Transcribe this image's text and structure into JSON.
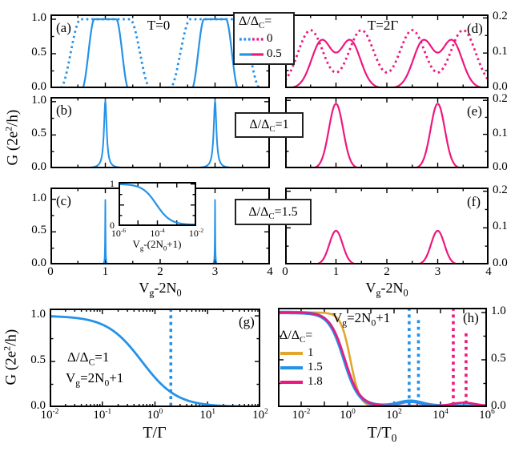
{
  "colors": {
    "blue": "#2492e8",
    "magenta": "#ed187f",
    "orange": "#e2a52e",
    "axis": "#000000",
    "background": "#ffffff"
  },
  "labels": {
    "g_axis": {
      "pre": "G (2e",
      "sup": "2",
      "post": "/h)"
    },
    "vg_axis": {
      "pre": "V",
      "sub": "g",
      "post": "-2N",
      "sub2": "0"
    },
    "inset_axis": {
      "pre": "V",
      "sub": "g",
      "post": "-(2N",
      "sub2": "0",
      "post2": "+1)"
    },
    "t_gamma": "T/Γ",
    "t_t0": {
      "pre": "T/T",
      "sub": "0"
    }
  },
  "legend_top": {
    "title": {
      "pre": "Δ/Δ",
      "sub": "C",
      "post": "="
    },
    "items": [
      {
        "label": "0",
        "style": "dotted",
        "colors": [
          "blue",
          "magenta"
        ]
      },
      {
        "label": "0.5",
        "style": "solid",
        "colors": [
          "blue",
          "magenta"
        ]
      }
    ]
  },
  "annotations": {
    "box_be": {
      "pre": "Δ/Δ",
      "sub": "C",
      "post": "=1"
    },
    "box_cf": {
      "pre": "Δ/Δ",
      "sub": "C",
      "post": "=1.5"
    },
    "g_line1": {
      "pre": "Δ/Δ",
      "sub": "C",
      "post": "=1"
    },
    "vg_eq": {
      "pre": "V",
      "sub": "g",
      "post": "=2N",
      "sub2": "0",
      "post2": "+1"
    },
    "h_legend": {
      "title": {
        "pre": "Δ/Δ",
        "sub": "C",
        "post": "="
      },
      "items": [
        {
          "label": "1",
          "color": "orange"
        },
        {
          "label": "1.5",
          "color": "blue"
        },
        {
          "label": "1.8",
          "color": "magenta"
        }
      ]
    }
  },
  "chart_data": {
    "type": "line",
    "ylabel": "G (2e2/h)",
    "xlabel_top_panels": "Vg - 2N0",
    "panels": [
      {
        "id": "a",
        "letter": "(a)",
        "title": "T=0",
        "xlabel": "Vg - 2N0",
        "ylabel": "G (2e2/h)",
        "samples": 800,
        "x": {
          "scale": "linear",
          "min": 0,
          "max": 4,
          "majors": [
            0,
            1,
            2,
            3,
            4
          ],
          "minors": [
            0.5,
            1.5,
            2.5,
            3.5
          ]
        },
        "y": {
          "scale": "linear",
          "min": 0,
          "max": 1.07,
          "majors": [
            0,
            0.5,
            1
          ],
          "minors": [
            0.25,
            0.75
          ],
          "labels": {
            "side": "left",
            "values": [
              0,
              0.5,
              1
            ],
            "texts": [
              "0.0",
              "0.5",
              "1.0"
            ]
          }
        },
        "series": [
          {
            "name": "delta-ratio-0",
            "color": "blue",
            "line": "dotted",
            "lw": 2.8,
            "shape": "flat_top",
            "centers": [
              1,
              3
            ],
            "inner": 0.45,
            "outer": 0.82,
            "amp": 1.0,
            "note": "G=1 plateaus around Vg-2N0=1 and 3, width ~0.9"
          },
          {
            "name": "delta-ratio-0.5",
            "color": "blue",
            "line": "solid",
            "lw": 2.2,
            "shape": "flat_top",
            "centers": [
              1,
              3
            ],
            "inner": 0.2,
            "outer": 0.42,
            "amp": 1.0,
            "note": "G=1 plateaus around 1 and 3, width ~0.4"
          }
        ]
      },
      {
        "id": "b",
        "letter": "(b)",
        "title": "",
        "xlabel": "Vg - 2N0",
        "ylabel": "G (2e2/h)",
        "samples": 1400,
        "x": {
          "scale": "linear",
          "min": 0,
          "max": 4,
          "majors": [
            0,
            1,
            2,
            3,
            4
          ],
          "minors": [
            0.5,
            1.5,
            2.5,
            3.5
          ]
        },
        "y": {
          "scale": "linear",
          "min": 0,
          "max": 1.07,
          "majors": [
            0,
            0.5,
            1
          ],
          "minors": [
            0.25,
            0.75
          ],
          "labels": {
            "side": "left",
            "values": [
              0,
              0.5,
              1
            ],
            "texts": [
              "0.0",
              "0.5",
              "1.0"
            ]
          }
        },
        "series": [
          {
            "name": "delta-ratio-1",
            "color": "blue",
            "line": "solid",
            "lw": 2.0,
            "shape": "lorentz",
            "centers": [
              1,
              3
            ],
            "gamma": 0.03,
            "amp": 1.0,
            "note": "sharp peaks height 1.0 at Vg-2N0=1 and 3"
          }
        ]
      },
      {
        "id": "c",
        "letter": "(c)",
        "title": "",
        "xlabel": "Vg - 2N0",
        "ylabel": "G (2e2/h)",
        "samples": 2400,
        "x": {
          "scale": "linear",
          "min": 0,
          "max": 4,
          "majors": [
            0,
            1,
            2,
            3,
            4
          ],
          "minors": [
            0.5,
            1.5,
            2.5,
            3.5
          ],
          "labels": {
            "side": "bottom",
            "values": [
              0,
              1,
              2,
              3,
              4
            ],
            "texts": [
              "0",
              "1",
              "2",
              "3",
              "4"
            ]
          }
        },
        "y": {
          "scale": "linear",
          "min": 0,
          "max": 1.18,
          "majors": [
            0,
            0.5,
            1
          ],
          "minors": [
            0.25,
            0.75
          ],
          "labels": {
            "side": "left",
            "values": [
              0,
              0.5,
              1
            ],
            "texts": [
              "0.0",
              "0.5",
              "1.0"
            ]
          }
        },
        "series": [
          {
            "name": "delta-ratio-1.5",
            "color": "blue",
            "line": "solid",
            "lw": 1.8,
            "shape": "lorentz",
            "centers": [
              1,
              3
            ],
            "gamma": 0.0045,
            "amp": 1.0,
            "note": "needle-like peaks height 1.0 at Vg-2N0=1 and 3"
          }
        ]
      },
      {
        "id": "d",
        "letter": "(d)",
        "title": "T=2Γ",
        "xlabel": "Vg - 2N0",
        "ylabel": "G (2e2/h)",
        "samples": 800,
        "x": {
          "scale": "linear",
          "min": 0,
          "max": 4,
          "majors": [
            0,
            1,
            2,
            3,
            4
          ],
          "minors": [
            0.5,
            1.5,
            2.5,
            3.5
          ]
        },
        "y": {
          "scale": "linear",
          "min": 0,
          "max": 0.21,
          "majors": [
            0,
            0.1,
            0.2
          ],
          "minors": [
            0.05,
            0.15
          ],
          "labels": {
            "side": "right",
            "values": [
              0,
              0.1,
              0.2
            ],
            "texts": [
              "0.0",
              "0.1",
              "0.2"
            ]
          }
        },
        "series": [
          {
            "name": "delta-ratio-0",
            "color": "magenta",
            "line": "dotted",
            "lw": 2.8,
            "shape": "gauss",
            "centers": [
              0.5,
              1.5,
              2.5,
              3.5
            ],
            "sigma": 0.25,
            "amp": 0.165,
            "note": "peaks ~0.17 at 0.5,1.5,2.5,3.5"
          },
          {
            "name": "delta-ratio-0.5",
            "color": "magenta",
            "line": "solid",
            "lw": 2.2,
            "shape": "gauss",
            "centers": [
              0.72,
              1.28,
              2.72,
              3.28
            ],
            "sigma": 0.2,
            "amp": 0.135,
            "note": "double humps ~0.14 around 1 and 3"
          }
        ]
      },
      {
        "id": "e",
        "letter": "(e)",
        "title": "",
        "xlabel": "Vg - 2N0",
        "ylabel": "G (2e2/h)",
        "samples": 800,
        "x": {
          "scale": "linear",
          "min": 0,
          "max": 4,
          "majors": [
            0,
            1,
            2,
            3,
            4
          ],
          "minors": [
            0.5,
            1.5,
            2.5,
            3.5
          ]
        },
        "y": {
          "scale": "linear",
          "min": 0,
          "max": 0.21,
          "majors": [
            0,
            0.1,
            0.2
          ],
          "minors": [
            0.05,
            0.15
          ],
          "labels": {
            "side": "right",
            "values": [
              0,
              0.1,
              0.2
            ],
            "texts": [
              "0.0",
              "0.1",
              "0.2"
            ]
          }
        },
        "series": [
          {
            "name": "delta-ratio-1",
            "color": "magenta",
            "line": "solid",
            "lw": 2.2,
            "shape": "gauss",
            "centers": [
              1,
              3
            ],
            "sigma": 0.14,
            "amp": 0.19,
            "note": "peaks height ~0.19 at 1 and 3"
          }
        ]
      },
      {
        "id": "f",
        "letter": "(f)",
        "title": "",
        "xlabel": "Vg - 2N0",
        "ylabel": "G (2e2/h)",
        "samples": 800,
        "x": {
          "scale": "linear",
          "min": 0,
          "max": 4,
          "majors": [
            0,
            1,
            2,
            3,
            4
          ],
          "minors": [
            0.5,
            1.5,
            2.5,
            3.5
          ],
          "labels": {
            "side": "bottom",
            "values": [
              0,
              1,
              2,
              3,
              4
            ],
            "texts": [
              "0",
              "1",
              "2",
              "3",
              "4"
            ]
          }
        },
        "y": {
          "scale": "linear",
          "min": 0,
          "max": 0.21,
          "majors": [
            0,
            0.1,
            0.2
          ],
          "minors": [
            0.05,
            0.15
          ],
          "labels": {
            "side": "right",
            "values": [
              0,
              0.1,
              0.2
            ],
            "texts": [
              "0.0",
              "0.1",
              "0.2"
            ]
          }
        },
        "series": [
          {
            "name": "delta-ratio-1.5",
            "color": "magenta",
            "line": "solid",
            "lw": 2.2,
            "shape": "gauss",
            "centers": [
              1,
              3
            ],
            "sigma": 0.13,
            "amp": 0.092,
            "note": "peaks height ~0.09 at 1 and 3"
          }
        ]
      },
      {
        "id": "g",
        "letter": "(g)",
        "title": "",
        "xlabel": "T/Γ",
        "ylabel": "G (2e2/h)",
        "samples": 600,
        "x": {
          "scale": "log",
          "min": -2,
          "max": 2,
          "majors": [
            -2,
            -1,
            0,
            1,
            2
          ],
          "log_minors": true,
          "labels": {
            "side": "bottom",
            "exps": [
              -2,
              -1,
              0,
              1,
              2
            ]
          }
        },
        "y": {
          "scale": "linear",
          "min": 0,
          "max": 1.08,
          "majors": [
            0,
            0.5,
            1
          ],
          "minors": [
            0.25,
            0.75
          ],
          "labels": {
            "side": "left",
            "values": [
              0,
              0.5,
              1
            ],
            "texts": [
              "0.0",
              "0.5",
              "1.0"
            ]
          }
        },
        "series": [
          {
            "name": "G-vs-T-delta-1",
            "color": "blue",
            "line": "solid",
            "lw": 2.8,
            "shape": "logsig",
            "center": -0.25,
            "slope": 1.3,
            "amp": 1.0,
            "floor": 0.004,
            "note": "G falls from 1.0 below T/Γ~0.1 to ~0 above T/Γ~10"
          }
        ],
        "vlines": [
          {
            "u": 0.301,
            "color": "blue",
            "top": 1.08,
            "note": "dotted marker at T/Γ=2"
          }
        ]
      },
      {
        "id": "h",
        "letter": "(h)",
        "title": "",
        "xlabel": "T/T0",
        "ylabel": "G (2e2/h)",
        "samples": 900,
        "x": {
          "scale": "log",
          "min": -3,
          "max": 6,
          "majors": [
            -3,
            -2,
            -1,
            0,
            1,
            2,
            3,
            4,
            5,
            6
          ],
          "labels": {
            "side": "bottom",
            "exps": [
              -2,
              0,
              2,
              4,
              6
            ]
          }
        },
        "y": {
          "scale": "linear",
          "min": 0,
          "max": 1.05,
          "majors": [
            0,
            0.5,
            1
          ],
          "minors": [
            0.25,
            0.75
          ],
          "labels": {
            "side": "right",
            "values": [
              0,
              0.5,
              1
            ],
            "texts": [
              "0.0",
              "0.5",
              "1.0"
            ]
          }
        },
        "series": [
          {
            "name": "delta-ratio-1",
            "color": "orange",
            "line": "solid",
            "lw": 2.6,
            "shape": "logsig",
            "center": 0.12,
            "slope": 2.1,
            "amp": 1.0,
            "floor": 0.0,
            "note": "drops from 1 to 0 around T/T0~1"
          },
          {
            "name": "delta-ratio-1.5",
            "color": "blue",
            "line": "solid",
            "lw": 4.4,
            "shape": "logsig",
            "center": -0.15,
            "slope": 1.35,
            "amp": 1.0,
            "floor": 0.012,
            "bumps": [
              {
                "center": 2.7,
                "sigma": 0.5,
                "amp": 0.05
              }
            ],
            "note": "small conductance bump near T/T0~5e2"
          },
          {
            "name": "delta-ratio-1.8",
            "color": "magenta",
            "line": "solid",
            "lw": 2.6,
            "shape": "logsig",
            "center": -0.12,
            "slope": 1.35,
            "amp": 1.0,
            "floor": 0.012,
            "bumps": [
              {
                "center": 5.0,
                "sigma": 0.5,
                "amp": 0.035
              }
            ],
            "note": "small conductance bump near T/T0~1e5"
          }
        ],
        "vlines": [
          {
            "u": 2.65,
            "color": "blue",
            "top": 1.05
          },
          {
            "u": 3.05,
            "color": "blue",
            "top": 0.92
          },
          {
            "u": 4.55,
            "color": "magenta",
            "top": 1.05
          },
          {
            "u": 5.1,
            "color": "magenta",
            "top": 0.78
          }
        ]
      },
      {
        "id": "inset",
        "letter": "",
        "title": "",
        "xlabel": "Vg-(2N0+1)",
        "ylabel": "",
        "samples": 500,
        "small": true,
        "x": {
          "scale": "log",
          "min": -6,
          "max": -2,
          "majors": [
            -6,
            -5,
            -4,
            -3,
            -2
          ],
          "labels": {
            "side": "bottom",
            "exps": [
              -6,
              -4,
              -2
            ]
          }
        },
        "y": {
          "scale": "linear",
          "min": 0,
          "max": 1.05,
          "majors": [
            0,
            0.5,
            1
          ],
          "minors": [
            0.25,
            0.75
          ],
          "labels": {
            "side": "left",
            "values": [
              0,
              1
            ],
            "texts": [
              "0",
              "1"
            ]
          }
        },
        "series": [
          {
            "name": "inset-lineshape",
            "color": "blue",
            "line": "solid",
            "lw": 2.2,
            "shape": "logsig",
            "center": -4.05,
            "slope": 1.2,
            "amp": 1.0,
            "floor": 0.03,
            "note": "G falls from 1 to ~0 around Vg-(2N0+1)~1e-4"
          }
        ]
      }
    ]
  }
}
